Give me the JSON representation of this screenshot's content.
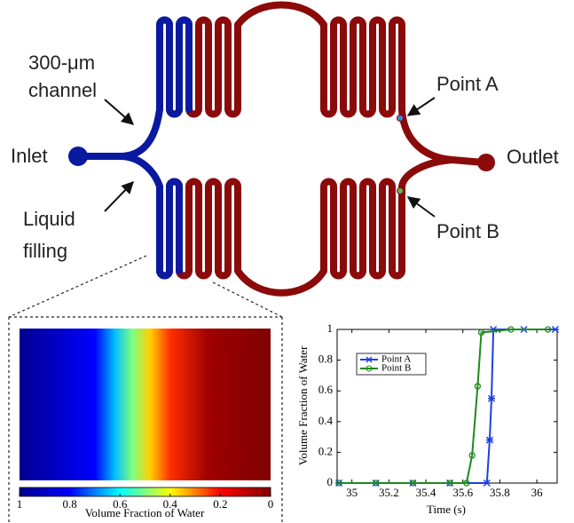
{
  "diagram": {
    "labels": {
      "channel_size": "300-μm",
      "channel": "channel",
      "inlet": "Inlet",
      "liquid": "Liquid",
      "filling": "filling",
      "point_a": "Point A",
      "outlet": "Outlet",
      "point_b": "Point B"
    }
  },
  "chart_data": [
    {
      "type": "colorbar",
      "xlabel": "Volume Fraction of Water",
      "xlim": [
        1,
        0
      ],
      "xticks": [
        1,
        0.8,
        0.6,
        0.4,
        0.2,
        0
      ],
      "colormap": "jet_r"
    },
    {
      "type": "line",
      "xlabel": "Time (s)",
      "ylabel": "Volume Fraction of Water",
      "xlim": [
        34.92,
        36.11
      ],
      "xticks": [
        35,
        35.2,
        35.4,
        35.6,
        35.8,
        36
      ],
      "ylim": [
        0,
        1
      ],
      "yticks": [
        0,
        0.2,
        0.4,
        0.6,
        0.8,
        1
      ],
      "legend": "upper left",
      "series": [
        {
          "name": "Point A",
          "color": "#1f3fe0",
          "marker": "x",
          "x": [
            34.93,
            35.13,
            35.33,
            35.53,
            35.73,
            35.745,
            35.755,
            35.765,
            35.93,
            36.1
          ],
          "values": [
            0,
            0,
            0,
            0,
            0,
            0.28,
            0.55,
            1,
            1,
            1
          ]
        },
        {
          "name": "Point B",
          "color": "#1e8a1e",
          "marker": "o",
          "x": [
            34.93,
            35.13,
            35.33,
            35.53,
            35.62,
            35.65,
            35.68,
            35.7,
            35.86,
            36.06
          ],
          "values": [
            0,
            0,
            0,
            0,
            0,
            0.18,
            0.63,
            0.98,
            1,
            1
          ]
        }
      ]
    }
  ]
}
